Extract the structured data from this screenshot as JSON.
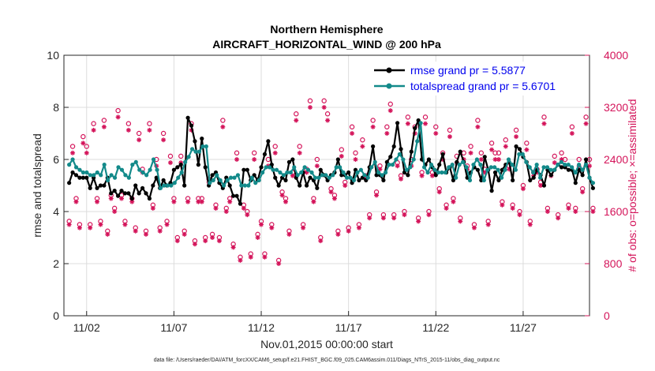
{
  "chart_data": {
    "type": "line",
    "title": [
      "Northern Hemisphere",
      "AIRCRAFT_HORIZONTAL_WIND @ 200 hPa"
    ],
    "xlabel": "Nov.01,2015 00:00:00 start",
    "ylabel": "rmse and totalspread",
    "ylabel_right": "# of obs: o=possible; ×=assimilated",
    "xlim": [
      0.7,
      30.8
    ],
    "ylim": [
      0,
      10
    ],
    "ylim_right": [
      0,
      4000
    ],
    "x_ticks": [
      2,
      7,
      12,
      17,
      22,
      27
    ],
    "x_tick_labels": [
      "11/02",
      "11/07",
      "11/12",
      "11/17",
      "11/22",
      "11/27"
    ],
    "y_ticks": [
      0,
      2,
      4,
      6,
      8,
      10
    ],
    "y_tick_labels": [
      "0",
      "2",
      "4",
      "6",
      "8",
      "10"
    ],
    "y_right_ticks": [
      0,
      800,
      1600,
      2400,
      3200,
      4000
    ],
    "y_right_tick_labels": [
      "0",
      "800",
      "1600",
      "2400",
      "3200",
      "4000"
    ],
    "series": [
      {
        "name": "rmse",
        "legend": "rmse grand pr = 5.5877",
        "color": "#000000",
        "axis": "left",
        "values": [
          5.1,
          5.5,
          5.4,
          5.3,
          5.3,
          5.3,
          4.9,
          5.3,
          4.9,
          5.0,
          5.0,
          5.3,
          4.7,
          4.8,
          4.6,
          4.8,
          4.7,
          4.7,
          4.5,
          5.0,
          4.7,
          4.9,
          4.7,
          4.5,
          5.0,
          5.3,
          4.9,
          5.2,
          5.0,
          5.1,
          5.6,
          5.7,
          5.8,
          5.0,
          7.6,
          7.3,
          6.7,
          5.8,
          6.8,
          5.7,
          5.0,
          5.4,
          5.5,
          5.1,
          4.9,
          5.3,
          5.0,
          4.6,
          4.6,
          4.3,
          5.6,
          5.6,
          5.2,
          5.4,
          5.2,
          5.7,
          6.2,
          6.7,
          5.8,
          5.3,
          5.0,
          5.3,
          5.2,
          5.9,
          6.0,
          5.3,
          5.0,
          5.5,
          5.0,
          5.3,
          5.2,
          4.9,
          5.6,
          5.4,
          5.2,
          5.4,
          5.5,
          6.0,
          5.4,
          5.4,
          5.5,
          5.1,
          5.6,
          5.2,
          5.3,
          5.2,
          5.7,
          6.5,
          5.4,
          5.4,
          5.2,
          5.9,
          6.1,
          6.5,
          7.4,
          6.4,
          5.5,
          5.4,
          6.3,
          7.2,
          7.5,
          6.0,
          5.8,
          6.0,
          5.7,
          5.4,
          5.8,
          6.2,
          5.5,
          5.7,
          5.2,
          5.9,
          6.3,
          5.9,
          5.3,
          5.5,
          5.7,
          5.6,
          5.2,
          6.1,
          5.6,
          4.8,
          5.5,
          5.2,
          5.6,
          5.8,
          5.9,
          5.2,
          6.5,
          6.4,
          6.1,
          5.9,
          5.2,
          5.3,
          5.6,
          5.4,
          5.0,
          5.6,
          5.4,
          5.6,
          5.8,
          5.7,
          5.7,
          5.6,
          5.6,
          5.1,
          5.6,
          5.4,
          6.0,
          5.3,
          4.9
        ]
      },
      {
        "name": "totalspread",
        "legend": "totalspread grand pr = 5.6701",
        "color": "#138a8a",
        "axis": "left",
        "values": [
          5.8,
          6.0,
          5.7,
          5.6,
          5.5,
          5.5,
          5.4,
          5.4,
          5.5,
          5.4,
          5.8,
          5.2,
          5.4,
          5.3,
          5.7,
          5.6,
          5.4,
          5.3,
          5.8,
          5.9,
          5.6,
          5.5,
          5.4,
          5.6,
          6.0,
          5.6,
          4.9,
          5.0,
          5.0,
          5.0,
          5.1,
          5.3,
          5.5,
          5.9,
          6.1,
          6.4,
          6.3,
          6.3,
          6.5,
          6.5,
          5.1,
          5.2,
          5.4,
          5.2,
          5.0,
          5.2,
          5.3,
          5.3,
          5.4,
          5.0,
          5.0,
          5.0,
          5.3,
          5.1,
          5.2,
          5.5,
          5.7,
          5.7,
          5.6,
          5.6,
          5.5,
          5.4,
          5.5,
          5.5,
          5.7,
          5.4,
          5.5,
          5.7,
          5.6,
          5.5,
          5.3,
          5.3,
          5.4,
          5.4,
          5.3,
          5.4,
          5.7,
          5.7,
          5.5,
          5.3,
          5.3,
          5.2,
          5.5,
          5.6,
          5.4,
          5.3,
          5.7,
          5.9,
          5.5,
          5.4,
          5.5,
          5.8,
          5.8,
          6.0,
          6.2,
          6.0,
          5.6,
          5.7,
          6.0,
          6.7,
          7.4,
          5.7,
          5.5,
          5.8,
          5.6,
          5.5,
          5.5,
          5.5,
          5.7,
          5.8,
          5.3,
          5.8,
          5.9,
          5.7,
          5.2,
          5.8,
          6.0,
          5.8,
          5.2,
          5.6,
          5.7,
          5.7,
          5.6,
          5.3,
          5.6,
          6.0,
          5.8,
          5.6,
          6.2,
          6.2,
          5.9,
          5.7,
          5.5,
          5.8,
          5.3,
          5.7,
          5.7,
          5.6,
          5.6,
          5.8,
          5.9,
          5.8,
          5.8,
          5.7,
          5.5,
          5.8,
          5.6,
          5.8,
          5.3,
          5.1
        ]
      },
      {
        "name": "possible",
        "marker": "o",
        "color": "#d4145a",
        "axis": "right",
        "values": [
          1450,
          2600,
          1800,
          1400,
          2750,
          2600,
          1400,
          2950,
          1800,
          1450,
          3000,
          1300,
          1850,
          1650,
          3150,
          1850,
          1450,
          2950,
          1800,
          1350,
          2800,
          2250,
          1300,
          2950,
          1700,
          2400,
          1350,
          2800,
          1450,
          2450,
          1800,
          1200,
          2450,
          1300,
          1800,
          2950,
          1150,
          1800,
          1800,
          1200,
          2100,
          1250,
          1700,
          1200,
          3000,
          1650,
          1800,
          1100,
          2500,
          900,
          1700,
          1600,
          950,
          2500,
          1250,
          1450,
          950,
          2400,
          1400,
          2600,
          850,
          1900,
          1800,
          1300,
          2200,
          3100,
          2600,
          1400,
          2250,
          3300,
          1800,
          2400,
          1200,
          3300,
          3100,
          1950,
          1850,
          1300,
          2550,
          2050,
          1350,
          2900,
          2500,
          1400,
          2700,
          2150,
          1550,
          3000,
          1900,
          2300,
          1550,
          2900,
          3250,
          1550,
          2350,
          2150,
          1600,
          3050,
          2400,
          2900,
          1500,
          2200,
          3050,
          1600,
          2200,
          2900,
          1950,
          2500,
          1700,
          2850,
          1800,
          2450,
          1500,
          2500,
          2300,
          2600,
          1400,
          3000,
          2500,
          2250,
          1450,
          2650,
          2500,
          2500,
          1750,
          2700,
          2300,
          1700,
          2850,
          1600,
          2000,
          2650,
          1450,
          2200,
          2250,
          2050,
          3050,
          1650,
          2200,
          2450,
          1550,
          2500,
          2400,
          1700,
          2900,
          1650,
          2400,
          1950,
          3050,
          2400,
          1650
        ]
      },
      {
        "name": "assimilated",
        "marker": "x",
        "color": "#d4145a",
        "axis": "right",
        "values": [
          1400,
          2500,
          1750,
          1350,
          2650,
          2500,
          1350,
          2850,
          1750,
          1400,
          2900,
          1250,
          1800,
          1600,
          3050,
          1800,
          1400,
          2850,
          1750,
          1300,
          2700,
          2200,
          1250,
          2850,
          1650,
          2300,
          1300,
          2700,
          1400,
          2350,
          1750,
          1150,
          2350,
          1250,
          1750,
          2850,
          1100,
          1750,
          1750,
          1150,
          2050,
          1200,
          1650,
          1150,
          2900,
          1600,
          1750,
          1050,
          2400,
          850,
          1650,
          1550,
          900,
          2400,
          1200,
          1400,
          900,
          2300,
          1350,
          2500,
          800,
          1850,
          1750,
          1250,
          2150,
          3000,
          2500,
          1350,
          2200,
          3200,
          1750,
          2300,
          1150,
          3200,
          3000,
          1900,
          1800,
          1250,
          2450,
          2000,
          1300,
          2800,
          2400,
          1350,
          2600,
          2100,
          1500,
          2900,
          1850,
          2250,
          1500,
          2800,
          3150,
          1500,
          2300,
          2100,
          1550,
          2950,
          2300,
          2800,
          1450,
          2150,
          2950,
          1550,
          2150,
          2800,
          1900,
          2400,
          1650,
          2750,
          1750,
          2350,
          1450,
          2400,
          2250,
          2500,
          1350,
          2900,
          2400,
          2200,
          1400,
          2550,
          2400,
          2400,
          1700,
          2600,
          2250,
          1650,
          2750,
          1550,
          1950,
          2550,
          1400,
          2150,
          2200,
          2000,
          2950,
          1600,
          2150,
          2350,
          1500,
          2400,
          2300,
          1650,
          2800,
          1600,
          2300,
          1900,
          2950,
          2300,
          1600
        ]
      }
    ],
    "footnote": "data file: /Users/raeder/DAI/ATM_forcXX/CAM6_setup/f.e21.FHIST_BGC.f09_025.CAM6assim.011/Diags_NTrS_2015-11/obs_diag_output.nc"
  }
}
